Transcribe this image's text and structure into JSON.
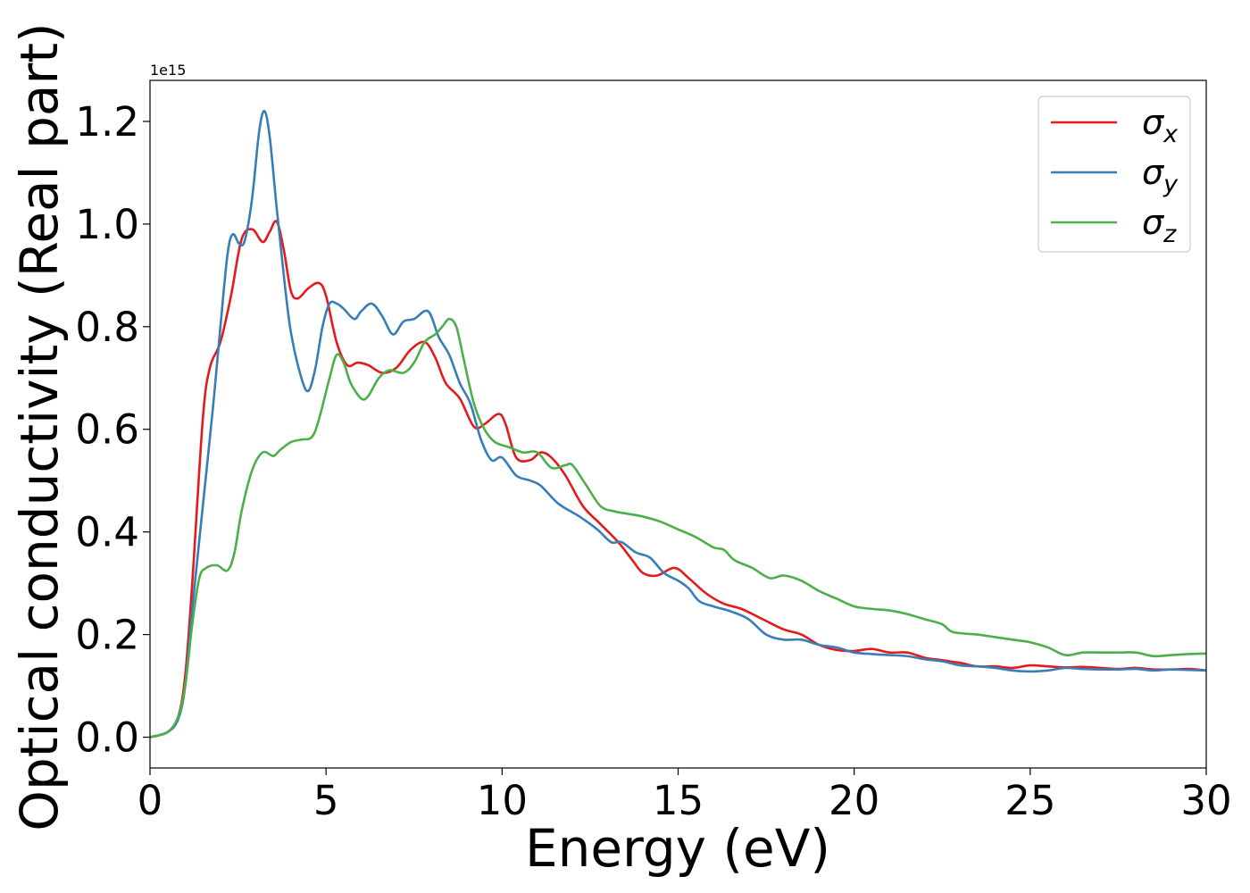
{
  "chart_data": {
    "type": "line",
    "xlabel": "Energy (eV)",
    "ylabel": "Optical conductivity (Real part)",
    "y_offset_text": "1e15",
    "xlim": [
      0,
      30
    ],
    "ylim": [
      -0.06,
      1.28
    ],
    "x_ticks": [
      0,
      5,
      10,
      15,
      20,
      25,
      30
    ],
    "x_tick_labels": [
      "0",
      "5",
      "10",
      "15",
      "20",
      "25",
      "30"
    ],
    "y_ticks": [
      0.0,
      0.2,
      0.4,
      0.6,
      0.8,
      1.0,
      1.2
    ],
    "y_tick_labels": [
      "0.0",
      "0.2",
      "0.4",
      "0.6",
      "0.8",
      "1.0",
      "1.2"
    ],
    "grid": false,
    "legend_position": "top-right",
    "series": [
      {
        "name": "σx",
        "symbol": "σ",
        "subscript": "x",
        "color": "#e41a1c",
        "points": [
          [
            0,
            0
          ],
          [
            0.5,
            0.01
          ],
          [
            0.8,
            0.04
          ],
          [
            1.0,
            0.12
          ],
          [
            1.2,
            0.3
          ],
          [
            1.5,
            0.62
          ],
          [
            1.7,
            0.72
          ],
          [
            2.0,
            0.77
          ],
          [
            2.3,
            0.86
          ],
          [
            2.6,
            0.97
          ],
          [
            2.9,
            0.99
          ],
          [
            3.2,
            0.965
          ],
          [
            3.4,
            0.985
          ],
          [
            3.6,
            1.005
          ],
          [
            3.8,
            0.95
          ],
          [
            4.0,
            0.87
          ],
          [
            4.2,
            0.855
          ],
          [
            4.5,
            0.875
          ],
          [
            4.8,
            0.885
          ],
          [
            5.0,
            0.86
          ],
          [
            5.3,
            0.77
          ],
          [
            5.6,
            0.725
          ],
          [
            5.9,
            0.73
          ],
          [
            6.2,
            0.725
          ],
          [
            6.6,
            0.71
          ],
          [
            7.0,
            0.72
          ],
          [
            7.4,
            0.755
          ],
          [
            7.8,
            0.77
          ],
          [
            8.1,
            0.74
          ],
          [
            8.4,
            0.69
          ],
          [
            8.8,
            0.66
          ],
          [
            9.2,
            0.605
          ],
          [
            9.5,
            0.61
          ],
          [
            9.9,
            0.63
          ],
          [
            10.1,
            0.61
          ],
          [
            10.4,
            0.545
          ],
          [
            10.8,
            0.54
          ],
          [
            11.1,
            0.555
          ],
          [
            11.4,
            0.545
          ],
          [
            11.8,
            0.51
          ],
          [
            12.3,
            0.45
          ],
          [
            12.8,
            0.415
          ],
          [
            13.3,
            0.38
          ],
          [
            13.7,
            0.345
          ],
          [
            14.0,
            0.32
          ],
          [
            14.4,
            0.315
          ],
          [
            14.9,
            0.33
          ],
          [
            15.3,
            0.31
          ],
          [
            15.8,
            0.28
          ],
          [
            16.3,
            0.26
          ],
          [
            16.8,
            0.25
          ],
          [
            17.4,
            0.23
          ],
          [
            18.0,
            0.21
          ],
          [
            18.5,
            0.2
          ],
          [
            19.0,
            0.18
          ],
          [
            19.5,
            0.17
          ],
          [
            20.0,
            0.168
          ],
          [
            20.5,
            0.172
          ],
          [
            21.0,
            0.165
          ],
          [
            21.5,
            0.165
          ],
          [
            22.0,
            0.155
          ],
          [
            22.5,
            0.15
          ],
          [
            23.0,
            0.145
          ],
          [
            23.5,
            0.138
          ],
          [
            24.0,
            0.138
          ],
          [
            24.5,
            0.135
          ],
          [
            25.0,
            0.14
          ],
          [
            25.5,
            0.138
          ],
          [
            26.0,
            0.136
          ],
          [
            26.5,
            0.137
          ],
          [
            27.0,
            0.135
          ],
          [
            27.5,
            0.133
          ],
          [
            28.0,
            0.135
          ],
          [
            28.5,
            0.132
          ],
          [
            29.0,
            0.132
          ],
          [
            29.5,
            0.133
          ],
          [
            30.0,
            0.13
          ]
        ]
      },
      {
        "name": "σy",
        "symbol": "σ",
        "subscript": "y",
        "color": "#377eb8",
        "points": [
          [
            0,
            0
          ],
          [
            0.5,
            0.01
          ],
          [
            0.8,
            0.035
          ],
          [
            1.0,
            0.1
          ],
          [
            1.2,
            0.25
          ],
          [
            1.5,
            0.45
          ],
          [
            1.8,
            0.65
          ],
          [
            2.0,
            0.8
          ],
          [
            2.2,
            0.94
          ],
          [
            2.35,
            0.98
          ],
          [
            2.55,
            0.96
          ],
          [
            2.7,
            0.97
          ],
          [
            2.9,
            1.05
          ],
          [
            3.1,
            1.18
          ],
          [
            3.25,
            1.22
          ],
          [
            3.4,
            1.17
          ],
          [
            3.6,
            1.03
          ],
          [
            3.8,
            0.9
          ],
          [
            4.0,
            0.79
          ],
          [
            4.3,
            0.7
          ],
          [
            4.5,
            0.675
          ],
          [
            4.7,
            0.72
          ],
          [
            4.9,
            0.8
          ],
          [
            5.1,
            0.845
          ],
          [
            5.3,
            0.845
          ],
          [
            5.5,
            0.835
          ],
          [
            5.8,
            0.815
          ],
          [
            6.0,
            0.83
          ],
          [
            6.3,
            0.845
          ],
          [
            6.6,
            0.82
          ],
          [
            6.9,
            0.785
          ],
          [
            7.2,
            0.81
          ],
          [
            7.5,
            0.815
          ],
          [
            7.9,
            0.83
          ],
          [
            8.2,
            0.78
          ],
          [
            8.5,
            0.745
          ],
          [
            8.8,
            0.69
          ],
          [
            9.1,
            0.65
          ],
          [
            9.4,
            0.58
          ],
          [
            9.7,
            0.54
          ],
          [
            10.0,
            0.545
          ],
          [
            10.4,
            0.51
          ],
          [
            10.8,
            0.5
          ],
          [
            11.1,
            0.49
          ],
          [
            11.6,
            0.455
          ],
          [
            12.2,
            0.43
          ],
          [
            12.7,
            0.405
          ],
          [
            13.1,
            0.38
          ],
          [
            13.4,
            0.38
          ],
          [
            13.8,
            0.36
          ],
          [
            14.2,
            0.35
          ],
          [
            14.6,
            0.32
          ],
          [
            15.0,
            0.305
          ],
          [
            15.3,
            0.29
          ],
          [
            15.6,
            0.265
          ],
          [
            16.0,
            0.255
          ],
          [
            16.5,
            0.245
          ],
          [
            17.0,
            0.23
          ],
          [
            17.5,
            0.2
          ],
          [
            18.0,
            0.19
          ],
          [
            18.5,
            0.19
          ],
          [
            19.0,
            0.18
          ],
          [
            19.5,
            0.175
          ],
          [
            20.0,
            0.165
          ],
          [
            20.5,
            0.162
          ],
          [
            21.0,
            0.16
          ],
          [
            21.5,
            0.158
          ],
          [
            22.0,
            0.152
          ],
          [
            22.5,
            0.148
          ],
          [
            23.0,
            0.14
          ],
          [
            23.5,
            0.138
          ],
          [
            24.0,
            0.135
          ],
          [
            24.5,
            0.13
          ],
          [
            25.0,
            0.128
          ],
          [
            25.5,
            0.13
          ],
          [
            26.0,
            0.135
          ],
          [
            26.5,
            0.133
          ],
          [
            27.0,
            0.132
          ],
          [
            27.5,
            0.132
          ],
          [
            28.0,
            0.133
          ],
          [
            28.5,
            0.13
          ],
          [
            29.0,
            0.132
          ],
          [
            29.5,
            0.131
          ],
          [
            30.0,
            0.13
          ]
        ]
      },
      {
        "name": "σz",
        "symbol": "σ",
        "subscript": "z",
        "color": "#4daf4a",
        "points": [
          [
            0,
            0
          ],
          [
            0.5,
            0.01
          ],
          [
            0.8,
            0.04
          ],
          [
            1.0,
            0.1
          ],
          [
            1.2,
            0.22
          ],
          [
            1.4,
            0.31
          ],
          [
            1.6,
            0.33
          ],
          [
            1.9,
            0.335
          ],
          [
            2.2,
            0.325
          ],
          [
            2.4,
            0.36
          ],
          [
            2.6,
            0.44
          ],
          [
            2.9,
            0.52
          ],
          [
            3.2,
            0.555
          ],
          [
            3.5,
            0.548
          ],
          [
            3.7,
            0.56
          ],
          [
            4.0,
            0.575
          ],
          [
            4.3,
            0.58
          ],
          [
            4.6,
            0.585
          ],
          [
            4.8,
            0.62
          ],
          [
            5.1,
            0.7
          ],
          [
            5.3,
            0.745
          ],
          [
            5.5,
            0.73
          ],
          [
            5.7,
            0.69
          ],
          [
            6.0,
            0.66
          ],
          [
            6.2,
            0.665
          ],
          [
            6.5,
            0.7
          ],
          [
            6.8,
            0.715
          ],
          [
            7.2,
            0.71
          ],
          [
            7.5,
            0.73
          ],
          [
            7.8,
            0.77
          ],
          [
            8.1,
            0.785
          ],
          [
            8.3,
            0.8
          ],
          [
            8.5,
            0.815
          ],
          [
            8.7,
            0.8
          ],
          [
            8.9,
            0.74
          ],
          [
            9.2,
            0.65
          ],
          [
            9.5,
            0.6
          ],
          [
            9.8,
            0.575
          ],
          [
            10.2,
            0.565
          ],
          [
            10.6,
            0.555
          ],
          [
            11.0,
            0.555
          ],
          [
            11.4,
            0.525
          ],
          [
            11.8,
            0.53
          ],
          [
            12.0,
            0.53
          ],
          [
            12.4,
            0.49
          ],
          [
            12.8,
            0.45
          ],
          [
            13.2,
            0.44
          ],
          [
            13.6,
            0.435
          ],
          [
            14.0,
            0.43
          ],
          [
            14.5,
            0.42
          ],
          [
            15.0,
            0.405
          ],
          [
            15.5,
            0.39
          ],
          [
            16.0,
            0.37
          ],
          [
            16.3,
            0.365
          ],
          [
            16.6,
            0.345
          ],
          [
            17.1,
            0.33
          ],
          [
            17.6,
            0.31
          ],
          [
            18.0,
            0.315
          ],
          [
            18.5,
            0.305
          ],
          [
            19.0,
            0.285
          ],
          [
            19.5,
            0.27
          ],
          [
            20.0,
            0.255
          ],
          [
            20.5,
            0.25
          ],
          [
            21.0,
            0.247
          ],
          [
            21.5,
            0.24
          ],
          [
            22.0,
            0.23
          ],
          [
            22.5,
            0.22
          ],
          [
            22.8,
            0.205
          ],
          [
            23.5,
            0.2
          ],
          [
            24.0,
            0.195
          ],
          [
            24.5,
            0.19
          ],
          [
            25.0,
            0.185
          ],
          [
            25.5,
            0.175
          ],
          [
            26.0,
            0.16
          ],
          [
            26.5,
            0.165
          ],
          [
            27.0,
            0.165
          ],
          [
            27.5,
            0.165
          ],
          [
            28.0,
            0.165
          ],
          [
            28.5,
            0.158
          ],
          [
            29.0,
            0.16
          ],
          [
            29.5,
            0.162
          ],
          [
            30.0,
            0.163
          ]
        ]
      }
    ]
  }
}
